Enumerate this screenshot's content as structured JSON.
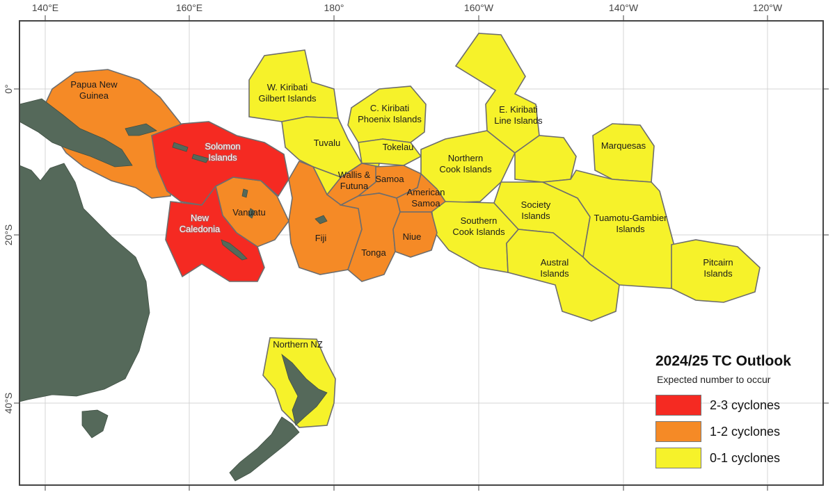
{
  "map": {
    "longitude_labels": [
      "140°E",
      "160°E",
      "180°",
      "160°W",
      "140°W",
      "120°W"
    ],
    "latitude_labels": [
      "0°",
      "20°S",
      "40°S"
    ],
    "legend": {
      "title": "2024/25 TC Outlook",
      "subtitle": "Expected number to occur",
      "items": [
        {
          "label": "2-3 cyclones",
          "color": "#f52a22"
        },
        {
          "label": "1-2 cyclones",
          "color": "#f58a26"
        },
        {
          "label": "0-1 cyclones",
          "color": "#f6f22a"
        }
      ]
    },
    "regions": [
      {
        "line1": "Papua New",
        "line2": "Guinea",
        "category": "1-2 cyclones"
      },
      {
        "line1": "Solomon",
        "line2": "Islands",
        "category": "2-3 cyclones"
      },
      {
        "line1": "New",
        "line2": "Caledonia",
        "category": "2-3 cyclones"
      },
      {
        "line1": "Vanuatu",
        "line2": "",
        "category": "1-2 cyclones"
      },
      {
        "line1": "W. Kiribati",
        "line2": "Gilbert Islands",
        "category": "0-1 cyclones"
      },
      {
        "line1": "Tuvalu",
        "line2": "",
        "category": "0-1 cyclones"
      },
      {
        "line1": "C. Kiribati",
        "line2": "Phoenix Islands",
        "category": "0-1 cyclones"
      },
      {
        "line1": "Tokelau",
        "line2": "",
        "category": "0-1 cyclones"
      },
      {
        "line1": "Wallis &",
        "line2": "Futuna",
        "category": "1-2 cyclones"
      },
      {
        "line1": "Samoa",
        "line2": "",
        "category": "1-2 cyclones"
      },
      {
        "line1": "American",
        "line2": "Samoa",
        "category": "1-2 cyclones"
      },
      {
        "line1": "Fiji",
        "line2": "",
        "category": "1-2 cyclones"
      },
      {
        "line1": "Tonga",
        "line2": "",
        "category": "1-2 cyclones"
      },
      {
        "line1": "Niue",
        "line2": "",
        "category": "1-2 cyclones"
      },
      {
        "line1": "Northern",
        "line2": "Cook Islands",
        "category": "0-1 cyclones"
      },
      {
        "line1": "Southern",
        "line2": "Cook Islands",
        "category": "0-1 cyclones"
      },
      {
        "line1": "E. Kiribati",
        "line2": "Line Islands",
        "category": "0-1 cyclones"
      },
      {
        "line1": "Marquesas",
        "line2": "",
        "category": "0-1 cyclones"
      },
      {
        "line1": "Society",
        "line2": "Islands",
        "category": "0-1 cyclones"
      },
      {
        "line1": "Tuamotu-Gambier",
        "line2": "Islands",
        "category": "0-1 cyclones"
      },
      {
        "line1": "Austral",
        "line2": "Islands",
        "category": "0-1 cyclones"
      },
      {
        "line1": "Pitcairn",
        "line2": "Islands",
        "category": "0-1 cyclones"
      },
      {
        "line1": "Northern NZ",
        "line2": "",
        "category": "0-1 cyclones"
      }
    ]
  }
}
